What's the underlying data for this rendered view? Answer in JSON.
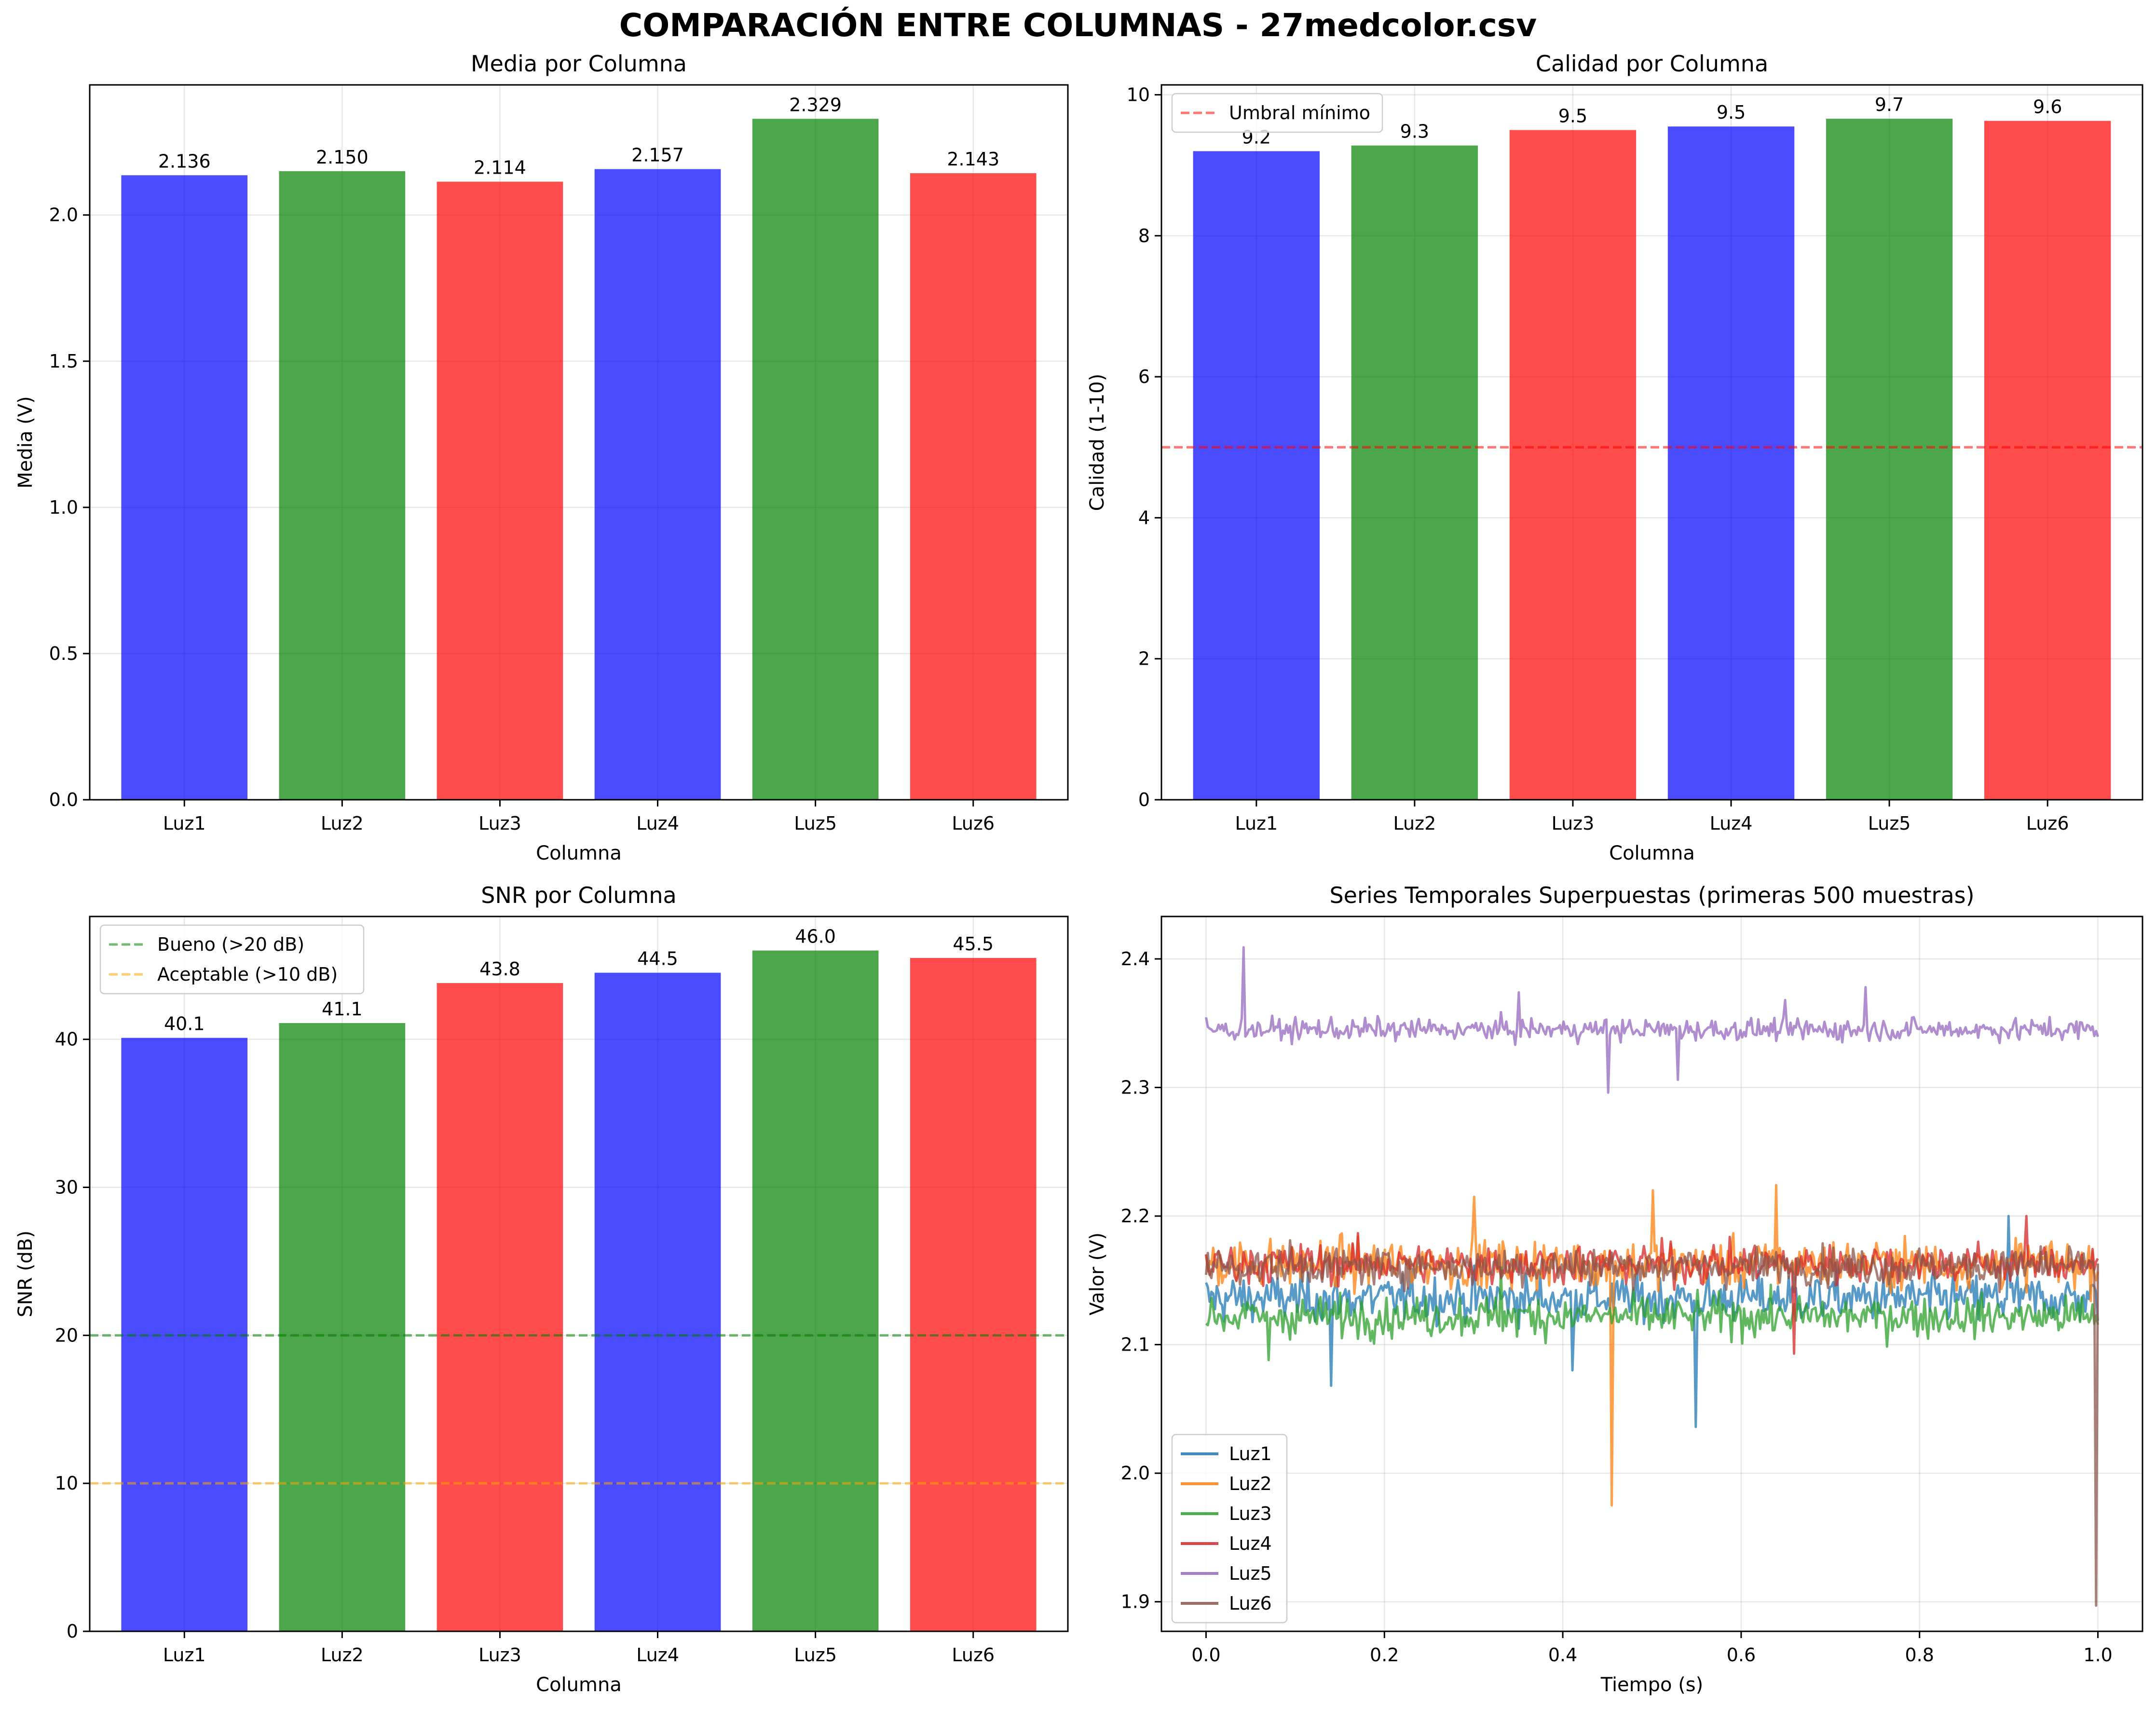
{
  "figure": {
    "title": "COMPARACIÓN ENTRE COLUMNAS - 27medcolor.csv"
  },
  "colors": {
    "blue": "#0000ff",
    "green": "#008000",
    "red": "#ff0000",
    "bar_alpha": 0.7,
    "threshold_red": "#ff0000",
    "good_green": "#008000",
    "acceptable_orange": "#ffa500"
  },
  "chart_data": [
    {
      "id": "media",
      "type": "bar",
      "title": "Media por Columna",
      "xlabel": "Columna",
      "ylabel": "Media (V)",
      "categories": [
        "Luz1",
        "Luz2",
        "Luz3",
        "Luz4",
        "Luz5",
        "Luz6"
      ],
      "values": [
        2.136,
        2.15,
        2.114,
        2.157,
        2.329,
        2.143
      ],
      "value_labels": [
        "2.136",
        "2.150",
        "2.114",
        "2.157",
        "2.329",
        "2.143"
      ],
      "bar_colors": [
        "blue",
        "green",
        "red",
        "blue",
        "green",
        "red"
      ],
      "ylim": [
        0,
        2.445
      ],
      "yticks": [
        0.0,
        0.5,
        1.0,
        1.5,
        2.0
      ],
      "ytick_labels": [
        "0.0",
        "0.5",
        "1.0",
        "1.5",
        "2.0"
      ],
      "grid": true,
      "hlines": [],
      "legend": null
    },
    {
      "id": "calidad",
      "type": "bar",
      "title": "Calidad por Columna",
      "xlabel": "Columna",
      "ylabel": "Calidad (1-10)",
      "categories": [
        "Luz1",
        "Luz2",
        "Luz3",
        "Luz4",
        "Luz5",
        "Luz6"
      ],
      "values": [
        9.2,
        9.28,
        9.5,
        9.55,
        9.66,
        9.63
      ],
      "value_labels": [
        "9.2",
        "9.3",
        "9.5",
        "9.5",
        "9.7",
        "9.6"
      ],
      "bar_colors": [
        "blue",
        "green",
        "red",
        "blue",
        "green",
        "red"
      ],
      "ylim": [
        0,
        10.14
      ],
      "yticks": [
        0,
        2,
        4,
        6,
        8,
        10
      ],
      "ytick_labels": [
        "0",
        "2",
        "4",
        "6",
        "8",
        "10"
      ],
      "grid": true,
      "hlines": [
        {
          "y": 5,
          "color": "threshold_red",
          "label": "Umbral mínimo"
        }
      ],
      "legend": {
        "position": "upper-left",
        "entries": [
          "Umbral mínimo"
        ]
      }
    },
    {
      "id": "snr",
      "type": "bar",
      "title": "SNR por Columna",
      "xlabel": "Columna",
      "ylabel": "SNR (dB)",
      "categories": [
        "Luz1",
        "Luz2",
        "Luz3",
        "Luz4",
        "Luz5",
        "Luz6"
      ],
      "values": [
        40.1,
        41.1,
        43.8,
        44.5,
        46.0,
        45.5
      ],
      "value_labels": [
        "40.1",
        "41.1",
        "43.8",
        "44.5",
        "46.0",
        "45.5"
      ],
      "bar_colors": [
        "blue",
        "green",
        "red",
        "blue",
        "green",
        "red"
      ],
      "ylim": [
        0,
        48.3
      ],
      "yticks": [
        0,
        10,
        20,
        30,
        40
      ],
      "ytick_labels": [
        "0",
        "10",
        "20",
        "30",
        "40"
      ],
      "grid": true,
      "hlines": [
        {
          "y": 20,
          "color": "good_green",
          "label": "Bueno (>20 dB)"
        },
        {
          "y": 10,
          "color": "acceptable_orange",
          "label": "Aceptable (>10 dB)"
        }
      ],
      "legend": {
        "position": "upper-left",
        "entries": [
          "Bueno (>20 dB)",
          "Aceptable (>10 dB)"
        ]
      }
    },
    {
      "id": "series",
      "type": "line",
      "title": "Series Temporales Superpuestas (primeras 500 muestras)",
      "xlabel": "Tiempo (s)",
      "ylabel": "Valor (V)",
      "xlim": [
        -0.05,
        1.05
      ],
      "ylim": [
        1.877,
        2.433
      ],
      "xticks": [
        0.0,
        0.2,
        0.4,
        0.6,
        0.8,
        1.0
      ],
      "xtick_labels": [
        "0.0",
        "0.2",
        "0.4",
        "0.6",
        "0.8",
        "1.0"
      ],
      "yticks": [
        1.9,
        2.0,
        2.1,
        2.2,
        2.3,
        2.4
      ],
      "ytick_labels": [
        "1.9",
        "2.0",
        "2.1",
        "2.2",
        "2.3",
        "2.4"
      ],
      "grid": true,
      "n_samples": 500,
      "legend": {
        "position": "lower-left"
      },
      "series": [
        {
          "name": "Luz1",
          "color": "#1f77b4",
          "mean": 2.136,
          "noise": 0.013,
          "spikes": [
            [
              0.14,
              2.068
            ],
            [
              0.41,
              2.08
            ],
            [
              0.55,
              2.036
            ],
            [
              0.9,
              2.2
            ]
          ]
        },
        {
          "name": "Luz2",
          "color": "#ff7f0e",
          "mean": 2.163,
          "noise": 0.013,
          "spikes": [
            [
              0.455,
              1.975
            ],
            [
              0.64,
              2.224
            ],
            [
              0.5,
              2.22
            ],
            [
              0.3,
              2.215
            ]
          ]
        },
        {
          "name": "Luz3",
          "color": "#2ca02c",
          "mean": 2.122,
          "noise": 0.011,
          "spikes": [
            [
              0.07,
              2.088
            ],
            [
              0.33,
              2.16
            ]
          ]
        },
        {
          "name": "Luz4",
          "color": "#d62728",
          "mean": 2.163,
          "noise": 0.011,
          "spikes": [
            [
              0.66,
              2.093
            ],
            [
              0.92,
              2.2
            ]
          ]
        },
        {
          "name": "Luz5",
          "color": "#9467bd",
          "mean": 2.345,
          "noise": 0.006,
          "spikes": [
            [
              0.043,
              2.409
            ],
            [
              0.45,
              2.296
            ],
            [
              0.35,
              2.374
            ],
            [
              0.74,
              2.378
            ],
            [
              0.53,
              2.306
            ],
            [
              0.65,
              2.368
            ]
          ]
        },
        {
          "name": "Luz6",
          "color": "#8c564b",
          "mean": 2.161,
          "noise": 0.01,
          "spikes": [
            [
              0.998,
              1.897
            ]
          ]
        }
      ]
    }
  ]
}
